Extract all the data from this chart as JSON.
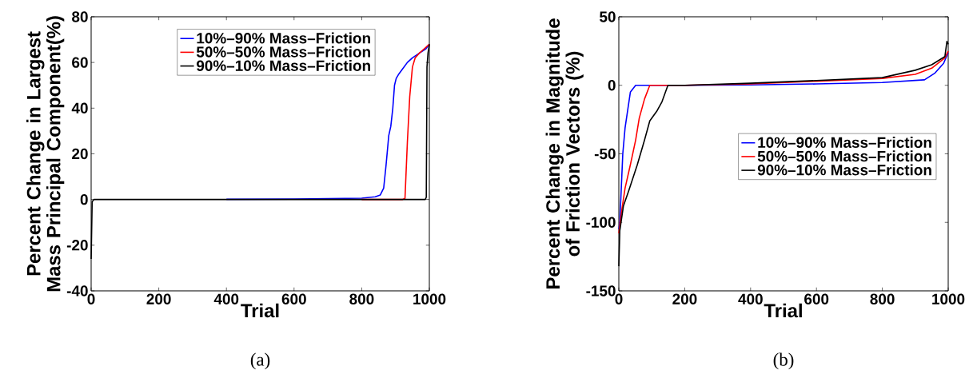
{
  "chart_data": [
    {
      "type": "line",
      "xlabel": "Trial",
      "ylabel": "Percent Change in Largest Mass Principal Component(%)",
      "xlim": [
        0,
        1000
      ],
      "ylim": [
        -40,
        80
      ],
      "xticks": [
        0,
        200,
        400,
        600,
        800,
        1000
      ],
      "yticks": [
        -40,
        -20,
        0,
        20,
        40,
        60,
        80
      ],
      "legend": "top",
      "annotations": [
        "(a)"
      ],
      "series": [
        {
          "name": "10%–90% Mass–Friction",
          "color": "#0000ff",
          "x": [
            400,
            600,
            800,
            840,
            855,
            865,
            872,
            880,
            886,
            892,
            897,
            902,
            910,
            920,
            935,
            950,
            970,
            990,
            1000
          ],
          "values": [
            0.1,
            0.2,
            0.6,
            1.2,
            2,
            5,
            15,
            28,
            32,
            40,
            50,
            53,
            55,
            57,
            60,
            62,
            64,
            66,
            68
          ]
        },
        {
          "name": "50%–50% Mass–Friction",
          "color": "#ff0000",
          "x": [
            800,
            920,
            928,
            935,
            942,
            950,
            958,
            970,
            985,
            1000
          ],
          "values": [
            0,
            0,
            0.5,
            25,
            45,
            58,
            62,
            64,
            66,
            68
          ]
        },
        {
          "name": "90%–10% Mass–Friction",
          "color": "#000000",
          "x": [
            0,
            3,
            8,
            200,
            400,
            600,
            800,
            988,
            991,
            993,
            996,
            1000
          ],
          "values": [
            -26,
            -1,
            0,
            0,
            0,
            0,
            0,
            0,
            1,
            58,
            64,
            68
          ]
        }
      ]
    },
    {
      "type": "line",
      "xlabel": "Trial",
      "ylabel": "Percent Change in Magnitude of Friction Vectors (%)",
      "xlim": [
        0,
        1000
      ],
      "ylim": [
        -150,
        50
      ],
      "xticks": [
        0,
        200,
        400,
        600,
        800,
        1000
      ],
      "yticks": [
        -150,
        -100,
        -50,
        0,
        50
      ],
      "legend": "right",
      "annotations": [
        "(b)"
      ],
      "series": [
        {
          "name": "10%–90% Mass–Friction",
          "color": "#0000ff",
          "x": [
            0,
            3,
            12,
            19,
            35,
            51,
            200,
            400,
            600,
            800,
            928,
            960,
            986,
            1000
          ],
          "values": [
            -105,
            -100,
            -50,
            -31,
            -5,
            0,
            0,
            0.3,
            1,
            2,
            4,
            9,
            16,
            24
          ]
        },
        {
          "name": "50%–50% Mass–Friction",
          "color": "#ff0000",
          "x": [
            0,
            9,
            19,
            35,
            51,
            62,
            78,
            94,
            200,
            400,
            600,
            800,
            900,
            950,
            990,
            1000
          ],
          "values": [
            -108,
            -91,
            -75,
            -58,
            -40,
            -24,
            -10,
            0,
            0,
            1,
            3,
            5,
            8,
            12.5,
            20,
            25
          ]
        },
        {
          "name": "90%–10% Mass–Friction",
          "color": "#000000",
          "x": [
            0,
            3,
            14,
            30,
            56,
            78,
            94,
            115,
            131,
            149,
            200,
            400,
            600,
            800,
            900,
            950,
            990,
            996,
            1000
          ],
          "values": [
            -132,
            -106,
            -88,
            -77,
            -58,
            -40,
            -26,
            -19,
            -12,
            0,
            0,
            1.5,
            3.5,
            5.6,
            11,
            15,
            21,
            32,
            30
          ]
        }
      ]
    }
  ]
}
